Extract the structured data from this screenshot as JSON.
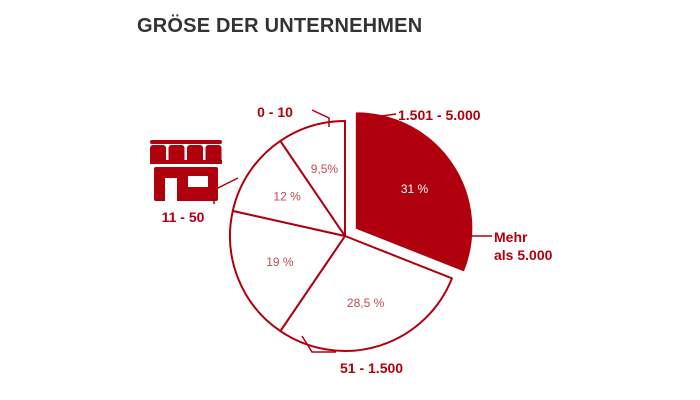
{
  "colors": {
    "accent": "#B0000E",
    "outline": "#B0000E",
    "title": "#333333",
    "percent_text": "#C44A52",
    "highlight_text": "#ffffff"
  },
  "icons": {
    "category_icon": "storefront-icon"
  },
  "chart_data": {
    "type": "pie",
    "title": "GRÖSE DER UNTERNEHMEN",
    "start_angle_deg": 0,
    "direction": "clockwise",
    "slices": [
      {
        "category": "Mehr als 5.000",
        "category_lines": [
          "Mehr",
          "als 5.000"
        ],
        "value": 31,
        "label": "31 %",
        "highlighted": true,
        "exploded": true
      },
      {
        "category": "51 - 1.500",
        "category_lines": [
          "51 - 1.500"
        ],
        "value": 28.5,
        "label": "28,5 %",
        "highlighted": false,
        "exploded": false
      },
      {
        "category": "11 - 50",
        "category_lines": [
          "11 - 50"
        ],
        "value": 19,
        "label": "19 %",
        "highlighted": false,
        "exploded": false
      },
      {
        "category": "0 - 10",
        "category_lines": [
          "0 - 10"
        ],
        "value": 12,
        "label": "12 %",
        "highlighted": false,
        "exploded": false
      },
      {
        "category": "1.501 - 5.000",
        "category_lines": [
          "1.501 - 5.000"
        ],
        "value": 9.5,
        "label": "9,5%",
        "highlighted": false,
        "exploded": false
      }
    ]
  }
}
